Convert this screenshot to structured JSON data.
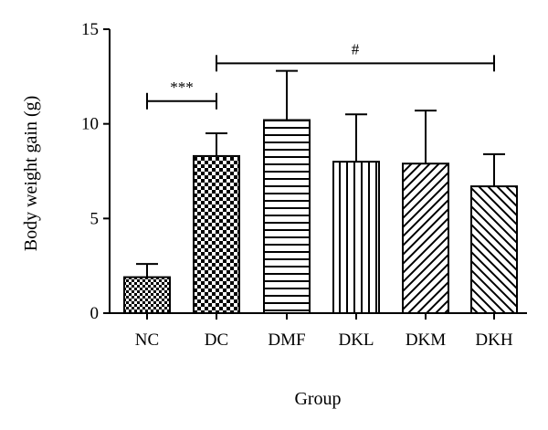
{
  "chart_data": {
    "type": "bar",
    "title": "",
    "xlabel": "Group",
    "ylabel": "Body weight gain (g)",
    "ylim": [
      0,
      15
    ],
    "yticks": [
      0,
      5,
      10,
      15
    ],
    "grid": false,
    "categories": [
      "NC",
      "DC",
      "DMF",
      "DKL",
      "DKM",
      "DKH"
    ],
    "values": [
      1.9,
      8.3,
      10.2,
      8.0,
      7.9,
      6.7
    ],
    "error_upper": [
      2.6,
      9.5,
      12.8,
      10.5,
      10.7,
      8.4
    ],
    "bar_patterns": [
      "checker-fine",
      "checker-coarse",
      "horizontal-lines",
      "vertical-lines",
      "diagonal-up",
      "diagonal-down"
    ],
    "annotations": [
      {
        "text": "***",
        "from": "NC",
        "to": "DC",
        "y": 11.2
      },
      {
        "text": "#",
        "from": "DC",
        "to": "DKH",
        "y": 13.2
      }
    ]
  }
}
